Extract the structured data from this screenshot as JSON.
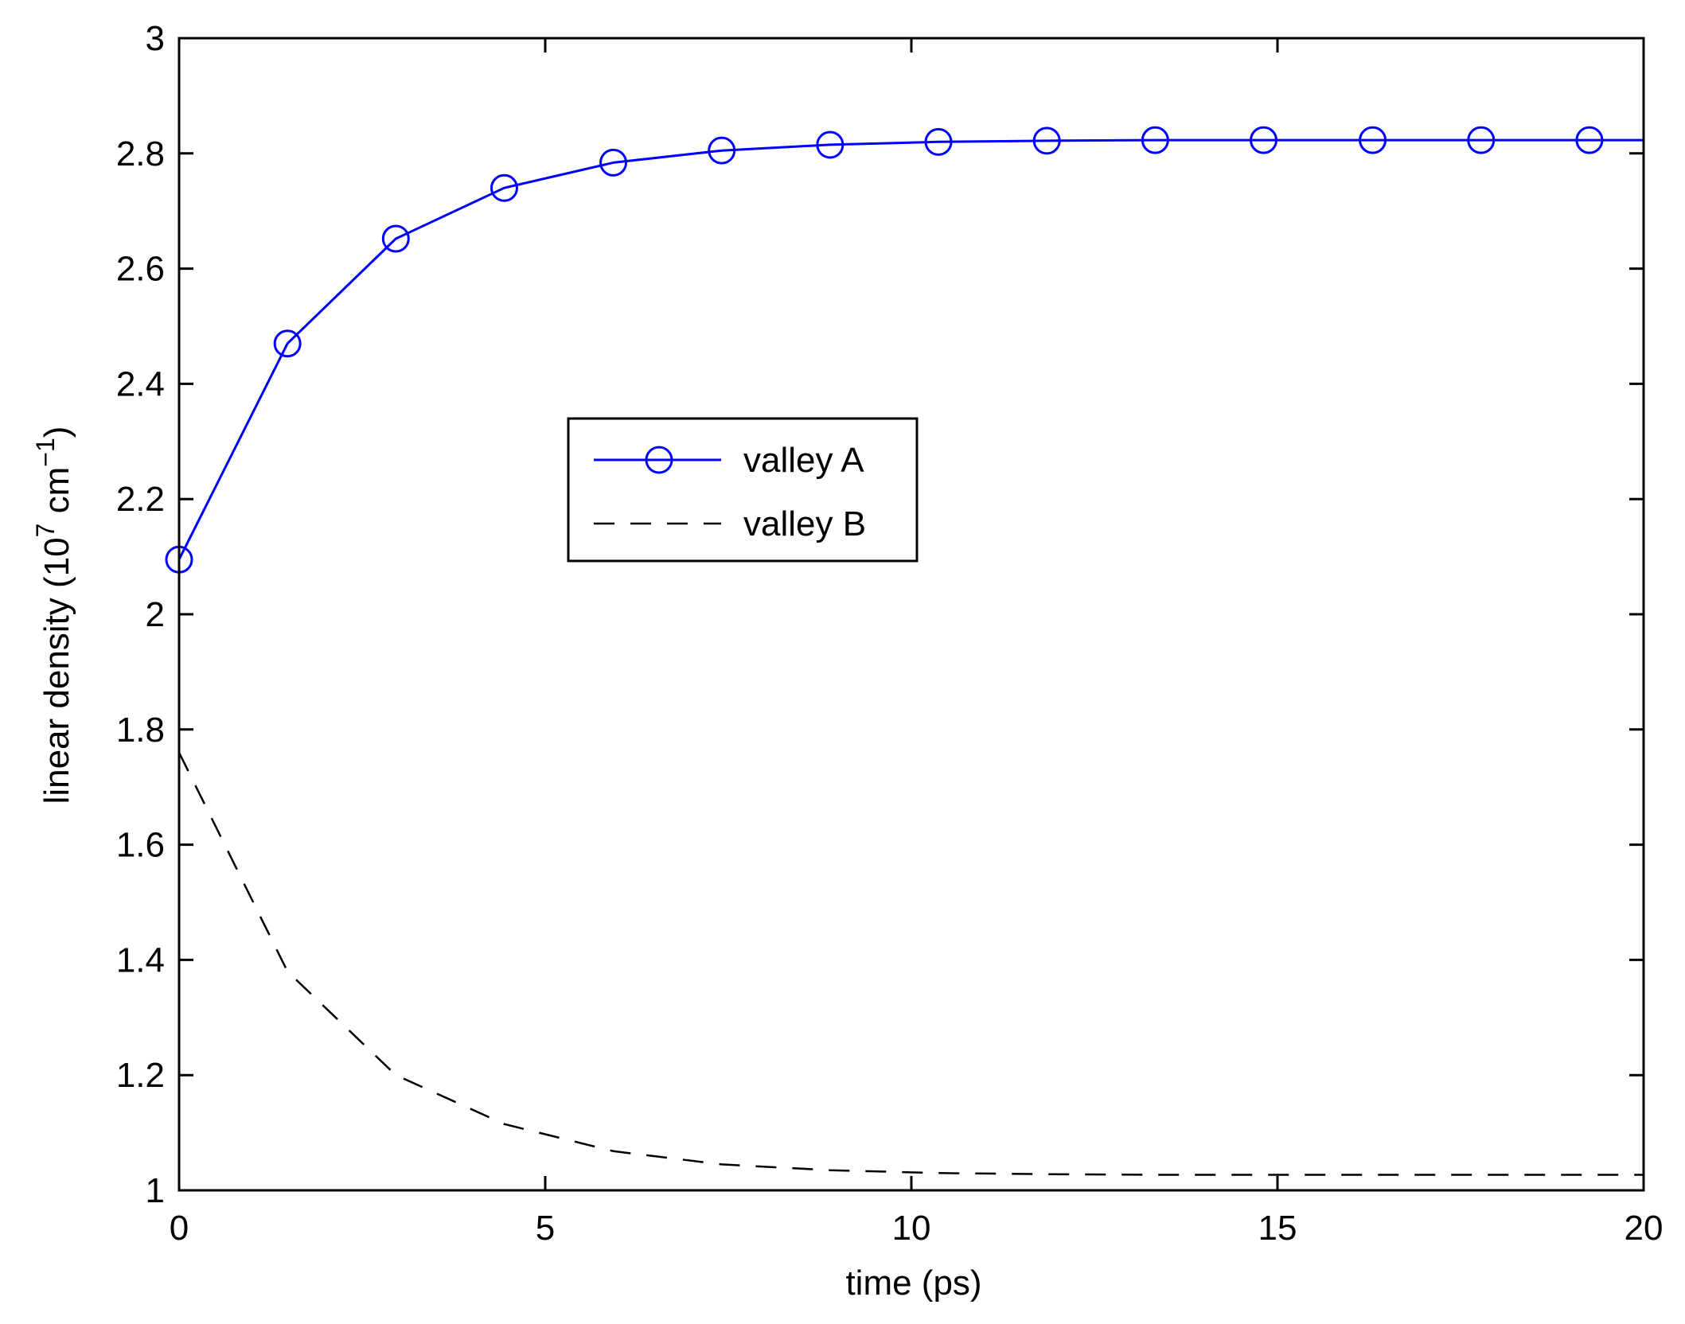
{
  "chart_data": {
    "type": "line",
    "title": "",
    "xlabel": "time (ps)",
    "ylabel": {
      "prefix": "linear density (10",
      "exp1": "7",
      "middle": " cm",
      "exp2": "−1",
      "suffix": ")"
    },
    "xlim": [
      0,
      20
    ],
    "ylim": [
      1,
      3
    ],
    "x_ticks": [
      0,
      5,
      10,
      15,
      20
    ],
    "x_tick_labels": [
      "0",
      "5",
      "10",
      "15",
      "20"
    ],
    "y_ticks": [
      1,
      1.2,
      1.4,
      1.6,
      1.8,
      2,
      2.2,
      2.4,
      2.6,
      2.8,
      3
    ],
    "y_tick_labels": [
      "1",
      "1.2",
      "1.4",
      "1.6",
      "1.8",
      "2",
      "2.2",
      "2.4",
      "2.6",
      "2.8",
      "3"
    ],
    "grid": false,
    "legend_position": "center-left",
    "series": [
      {
        "name": "valley A",
        "color": "#0000ff",
        "line_style": "solid",
        "marker": "circle",
        "x": [
          0,
          1.48,
          2.96,
          4.44,
          5.93,
          7.41,
          8.89,
          10.37,
          11.85,
          13.33,
          14.81,
          16.3,
          17.78,
          19.26,
          20
        ],
        "y": [
          2.095,
          2.47,
          2.652,
          2.74,
          2.784,
          2.805,
          2.815,
          2.82,
          2.822,
          2.823,
          2.823,
          2.823,
          2.823,
          2.823,
          2.823
        ],
        "marker_count": 14
      },
      {
        "name": "valley B",
        "color": "#000000",
        "line_style": "dashed",
        "marker": "none",
        "x": [
          0,
          1.48,
          2.96,
          4.44,
          5.93,
          7.41,
          8.89,
          10.37,
          11.85,
          13.33,
          14.81,
          16.3,
          17.78,
          19.26,
          20
        ],
        "y": [
          1.76,
          1.38,
          1.2,
          1.115,
          1.068,
          1.045,
          1.035,
          1.03,
          1.028,
          1.027,
          1.027,
          1.027,
          1.027,
          1.027,
          1.027
        ]
      }
    ]
  }
}
